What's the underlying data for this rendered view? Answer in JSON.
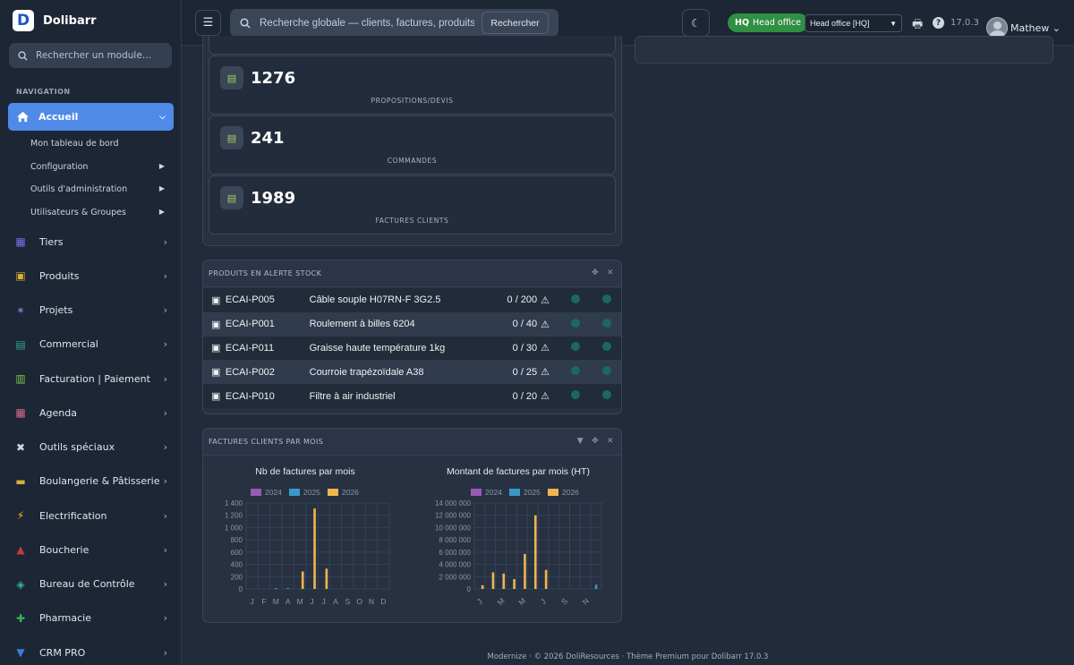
{
  "app": {
    "name": "Dolibarr",
    "version": "17.0.3"
  },
  "sidebar": {
    "search_placeholder": "Rechercher un module…",
    "heading": "NAVIGATION",
    "active": {
      "label": "Accueil",
      "icon": "home-icon"
    },
    "subitems": [
      {
        "label": "Mon tableau de bord",
        "has_arrow": false
      },
      {
        "label": "Configuration",
        "has_arrow": true
      },
      {
        "label": "Outils d'administration",
        "has_arrow": true
      },
      {
        "label": "Utilisateurs & Groupes",
        "has_arrow": true
      }
    ],
    "items": [
      {
        "label": "Tiers",
        "icon": "building-icon",
        "color": "#7c6ee8"
      },
      {
        "label": "Produits",
        "icon": "cube-icon",
        "color": "#d8b036"
      },
      {
        "label": "Projets",
        "icon": "project-icon",
        "color": "#9a6fd1"
      },
      {
        "label": "Commercial",
        "icon": "briefcase-icon",
        "color": "#2aa89b"
      },
      {
        "label": "Facturation | Paiement",
        "icon": "invoice-icon",
        "color": "#7fc44a"
      },
      {
        "label": "Agenda",
        "icon": "calendar-icon",
        "color": "#d36a8e"
      },
      {
        "label": "Outils spéciaux",
        "icon": "tools-icon",
        "color": "#d0d6df"
      },
      {
        "label": "Boulangerie & Pâtisserie",
        "icon": "bread-icon",
        "color": "#d8b036"
      },
      {
        "label": "Electrification",
        "icon": "bolt-icon",
        "color": "#f0c419"
      },
      {
        "label": "Boucherie",
        "icon": "meat-icon",
        "color": "#c33b3b"
      },
      {
        "label": "Bureau de Contrôle",
        "icon": "shield-icon",
        "color": "#2fb39a"
      },
      {
        "label": "Pharmacie",
        "icon": "plus-icon",
        "color": "#37b556"
      },
      {
        "label": "CRM PRO",
        "icon": "funnel-icon",
        "color": "#3b7ee0"
      }
    ]
  },
  "topbar": {
    "search_placeholder": "Recherche globale — clients, factures, produits…",
    "search_button": "Rechercher",
    "hq_short": "HQ",
    "hq_label": "Head office",
    "entity_select": "Head office [HQ]",
    "user_name": "Mathew"
  },
  "stats": [
    {
      "value": "1276",
      "label": "PROPOSITIONS/DEVIS",
      "icon": "proposal-icon"
    },
    {
      "value": "241",
      "label": "COMMANDES",
      "icon": "order-icon"
    },
    {
      "value": "1989",
      "label": "FACTURES CLIENTS",
      "icon": "invoice-doc-icon"
    }
  ],
  "stock_alert": {
    "title": "PRODUITS EN ALERTE STOCK",
    "rows": [
      {
        "ref": "ECAI-P005",
        "label": "Câble souple H07RN-F 3G2.5",
        "qty": "0 / 200"
      },
      {
        "ref": "ECAI-P001",
        "label": "Roulement à billes 6204",
        "qty": "0 / 40"
      },
      {
        "ref": "ECAI-P011",
        "label": "Graisse haute température 1kg",
        "qty": "0 / 30"
      },
      {
        "ref": "ECAI-P002",
        "label": "Courroie trapézoïdale A38",
        "qty": "0 / 25"
      },
      {
        "ref": "ECAI-P010",
        "label": "Filtre à air industriel",
        "qty": "0 / 20"
      }
    ]
  },
  "invoices_box": {
    "title": "FACTURES CLIENTS PAR MOIS"
  },
  "chart_data": [
    {
      "type": "bar",
      "title": "Nb de factures par mois",
      "categories": [
        "J",
        "F",
        "M",
        "A",
        "M",
        "J",
        "J",
        "A",
        "S",
        "O",
        "N",
        "D"
      ],
      "ylim": [
        0,
        1400
      ],
      "yticks": [
        "0",
        "200",
        "400",
        "600",
        "800",
        "1 000",
        "1 200",
        "1 400"
      ],
      "legend": "top",
      "grid": true,
      "series": [
        {
          "name": "2024",
          "color": "#9b59b6",
          "values": [
            0,
            0,
            0,
            0,
            0,
            0,
            0,
            0,
            0,
            0,
            0,
            0
          ]
        },
        {
          "name": "2025",
          "color": "#3a98c8",
          "values": [
            0,
            0,
            8,
            6,
            0,
            0,
            0,
            0,
            0,
            0,
            0,
            0
          ]
        },
        {
          "name": "2026",
          "color": "#f0b54d",
          "values": [
            0,
            0,
            0,
            0,
            285,
            1310,
            330,
            0,
            0,
            0,
            0,
            0
          ]
        }
      ]
    },
    {
      "type": "bar",
      "title": "Montant de factures par mois (HT)",
      "categories": [
        "J",
        "F",
        "M",
        "A",
        "M",
        "J",
        "J",
        "A",
        "S",
        "O",
        "N",
        "D"
      ],
      "xticks_shown": [
        "J",
        "M",
        "M",
        "J",
        "S",
        "N"
      ],
      "ylim": [
        0,
        14000000
      ],
      "yticks": [
        "0",
        "2 000 000",
        "4 000 000",
        "6 000 000",
        "8 000 000",
        "10 000 000",
        "12 000 000",
        "14 000 000"
      ],
      "legend": "top",
      "grid": true,
      "series": [
        {
          "name": "2024",
          "color": "#9b59b6",
          "values": [
            0,
            0,
            0,
            0,
            0,
            0,
            0,
            0,
            0,
            0,
            0,
            0
          ]
        },
        {
          "name": "2025",
          "color": "#3a98c8",
          "values": [
            0,
            0,
            0,
            0,
            0,
            0,
            0,
            0,
            0,
            0,
            0,
            700000
          ]
        },
        {
          "name": "2026",
          "color": "#f0b54d",
          "values": [
            600000,
            2700000,
            2500000,
            1600000,
            5700000,
            12000000,
            3100000,
            0,
            0,
            0,
            0,
            0
          ]
        }
      ]
    }
  ],
  "footer": "Modernize · © 2026 DoliResources · Thème Premium pour Dolibarr 17.0.3"
}
